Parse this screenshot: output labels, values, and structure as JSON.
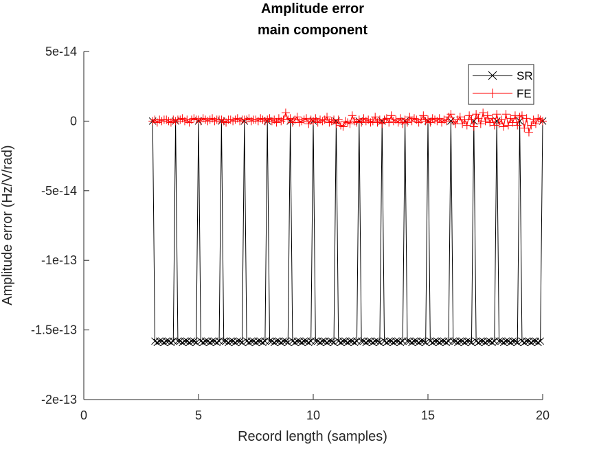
{
  "chart_data": {
    "type": "line",
    "title": "Amplitude error",
    "subtitle": "main component",
    "xlabel": "Record length (samples)",
    "ylabel": "Amplitude error (Hz/V/rad)",
    "xlim": [
      0,
      20
    ],
    "ylim": [
      -2e-13,
      5e-14
    ],
    "x_ticks": [
      0,
      5,
      10,
      15,
      20
    ],
    "x_tick_labels": [
      "0",
      "5",
      "10",
      "15",
      "20"
    ],
    "y_ticks": [
      5e-14,
      0,
      -5e-14,
      -1e-13,
      -1.5e-13,
      -2e-13
    ],
    "y_tick_labels": [
      "5e-14",
      "0",
      "-5e-14",
      "-1e-13",
      "-1.5e-13",
      "-2e-13"
    ],
    "grid": false,
    "legend": {
      "placement": "top-right",
      "entries": [
        "SR",
        "FE"
      ]
    },
    "series": [
      {
        "name": "SR",
        "color": "#000000",
        "marker": "x",
        "pattern": "At each integer record length 3..20 the error is 0; between integers it sits near -1.58e-13",
        "x": [
          3,
          3.1,
          3.2,
          3.3,
          3.4,
          3.5,
          3.6,
          3.7,
          3.8,
          3.9,
          4,
          4.1,
          4.2,
          4.3,
          4.4,
          4.5,
          4.6,
          4.7,
          4.8,
          4.9,
          5,
          5.1,
          5.2,
          5.3,
          5.4,
          5.5,
          5.6,
          5.7,
          5.8,
          5.9,
          6,
          6.1,
          6.2,
          6.3,
          6.4,
          6.5,
          6.6,
          6.7,
          6.8,
          6.9,
          7,
          7.1,
          7.2,
          7.3,
          7.4,
          7.5,
          7.6,
          7.7,
          7.8,
          7.9,
          8,
          8.1,
          8.2,
          8.3,
          8.4,
          8.5,
          8.6,
          8.7,
          8.8,
          8.9,
          9,
          9.1,
          9.2,
          9.3,
          9.4,
          9.5,
          9.6,
          9.7,
          9.8,
          9.9,
          10,
          10.1,
          10.2,
          10.3,
          10.4,
          10.5,
          10.6,
          10.7,
          10.8,
          10.9,
          11,
          11.1,
          11.2,
          11.3,
          11.4,
          11.5,
          11.6,
          11.7,
          11.8,
          11.9,
          12,
          12.1,
          12.2,
          12.3,
          12.4,
          12.5,
          12.6,
          12.7,
          12.8,
          12.9,
          13,
          13.1,
          13.2,
          13.3,
          13.4,
          13.5,
          13.6,
          13.7,
          13.8,
          13.9,
          14,
          14.1,
          14.2,
          14.3,
          14.4,
          14.5,
          14.6,
          14.7,
          14.8,
          14.9,
          15,
          15.1,
          15.2,
          15.3,
          15.4,
          15.5,
          15.6,
          15.7,
          15.8,
          15.9,
          16,
          16.1,
          16.2,
          16.3,
          16.4,
          16.5,
          16.6,
          16.7,
          16.8,
          16.9,
          17,
          17.1,
          17.2,
          17.3,
          17.4,
          17.5,
          17.6,
          17.7,
          17.8,
          17.9,
          18,
          18.1,
          18.2,
          18.3,
          18.4,
          18.5,
          18.6,
          18.7,
          18.8,
          18.9,
          19,
          19.1,
          19.2,
          19.3,
          19.4,
          19.5,
          19.6,
          19.7,
          19.8,
          19.9,
          20
        ],
        "y": [
          0,
          -1.58e-13,
          -1.59e-13,
          -1.58e-13,
          -1.58e-13,
          -1.59e-13,
          -1.58e-13,
          -1.58e-13,
          -1.59e-13,
          -1.58e-13,
          0,
          -1.58e-13,
          -1.58e-13,
          -1.59e-13,
          -1.58e-13,
          -1.58e-13,
          -1.59e-13,
          -1.58e-13,
          -1.58e-13,
          -1.59e-13,
          0,
          -1.58e-13,
          -1.59e-13,
          -1.58e-13,
          -1.58e-13,
          -1.59e-13,
          -1.58e-13,
          -1.58e-13,
          -1.59e-13,
          -1.58e-13,
          0,
          -1.58e-13,
          -1.58e-13,
          -1.59e-13,
          -1.58e-13,
          -1.58e-13,
          -1.59e-13,
          -1.58e-13,
          -1.58e-13,
          -1.59e-13,
          0,
          -1.58e-13,
          -1.59e-13,
          -1.58e-13,
          -1.58e-13,
          -1.59e-13,
          -1.58e-13,
          -1.58e-13,
          -1.59e-13,
          -1.58e-13,
          0,
          -1.58e-13,
          -1.58e-13,
          -1.59e-13,
          -1.58e-13,
          -1.58e-13,
          -1.59e-13,
          -1.58e-13,
          -1.58e-13,
          -1.59e-13,
          0,
          -1.58e-13,
          -1.59e-13,
          -1.58e-13,
          -1.58e-13,
          -1.59e-13,
          -1.58e-13,
          -1.58e-13,
          -1.59e-13,
          -1.58e-13,
          0,
          -1.58e-13,
          -1.58e-13,
          -1.59e-13,
          -1.58e-13,
          -1.58e-13,
          -1.59e-13,
          -1.58e-13,
          -1.58e-13,
          -1.59e-13,
          0,
          -1.58e-13,
          -1.59e-13,
          -1.58e-13,
          -1.58e-13,
          -1.59e-13,
          -1.58e-13,
          -1.58e-13,
          -1.59e-13,
          -1.58e-13,
          0,
          -1.58e-13,
          -1.58e-13,
          -1.59e-13,
          -1.58e-13,
          -1.58e-13,
          -1.59e-13,
          -1.58e-13,
          -1.58e-13,
          -1.59e-13,
          0,
          -1.58e-13,
          -1.59e-13,
          -1.58e-13,
          -1.58e-13,
          -1.59e-13,
          -1.58e-13,
          -1.58e-13,
          -1.59e-13,
          -1.58e-13,
          0,
          -1.58e-13,
          -1.58e-13,
          -1.59e-13,
          -1.58e-13,
          -1.58e-13,
          -1.59e-13,
          -1.58e-13,
          -1.58e-13,
          -1.59e-13,
          0,
          -1.58e-13,
          -1.59e-13,
          -1.58e-13,
          -1.58e-13,
          -1.59e-13,
          -1.58e-13,
          -1.58e-13,
          -1.59e-13,
          -1.58e-13,
          0,
          -1.58e-13,
          -1.58e-13,
          -1.59e-13,
          -1.58e-13,
          -1.58e-13,
          -1.59e-13,
          -1.58e-13,
          -1.58e-13,
          -1.59e-13,
          0,
          -1.58e-13,
          -1.59e-13,
          -1.58e-13,
          -1.58e-13,
          -1.59e-13,
          -1.58e-13,
          -1.58e-13,
          -1.59e-13,
          -1.58e-13,
          0,
          -1.58e-13,
          -1.58e-13,
          -1.59e-13,
          -1.58e-13,
          -1.58e-13,
          -1.59e-13,
          -1.58e-13,
          -1.58e-13,
          -1.59e-13,
          0,
          -1.58e-13,
          -1.59e-13,
          -1.58e-13,
          -1.58e-13,
          -1.59e-13,
          -1.58e-13,
          -1.58e-13,
          -1.59e-13,
          -1.58e-13,
          0
        ]
      },
      {
        "name": "FE",
        "color": "#ff0000",
        "marker": "+",
        "x": [
          3,
          3.1,
          3.2,
          3.3,
          3.4,
          3.5,
          3.6,
          3.7,
          3.8,
          3.9,
          4,
          4.1,
          4.2,
          4.3,
          4.4,
          4.5,
          4.6,
          4.7,
          4.8,
          4.9,
          5,
          5.1,
          5.2,
          5.3,
          5.4,
          5.5,
          5.6,
          5.7,
          5.8,
          5.9,
          6,
          6.1,
          6.2,
          6.3,
          6.4,
          6.5,
          6.6,
          6.7,
          6.8,
          6.9,
          7,
          7.1,
          7.2,
          7.3,
          7.4,
          7.5,
          7.6,
          7.7,
          7.8,
          7.9,
          8,
          8.1,
          8.2,
          8.3,
          8.4,
          8.5,
          8.6,
          8.7,
          8.8,
          8.9,
          9,
          9.1,
          9.2,
          9.3,
          9.4,
          9.5,
          9.6,
          9.7,
          9.8,
          9.9,
          10,
          10.1,
          10.2,
          10.3,
          10.4,
          10.5,
          10.6,
          10.7,
          10.8,
          10.9,
          11,
          11.1,
          11.2,
          11.3,
          11.4,
          11.5,
          11.6,
          11.7,
          11.8,
          11.9,
          12,
          12.1,
          12.2,
          12.3,
          12.4,
          12.5,
          12.6,
          12.7,
          12.8,
          12.9,
          13,
          13.1,
          13.2,
          13.3,
          13.4,
          13.5,
          13.6,
          13.7,
          13.8,
          13.9,
          14,
          14.1,
          14.2,
          14.3,
          14.4,
          14.5,
          14.6,
          14.7,
          14.8,
          14.9,
          15,
          15.1,
          15.2,
          15.3,
          15.4,
          15.5,
          15.6,
          15.7,
          15.8,
          15.9,
          16,
          16.1,
          16.2,
          16.3,
          16.4,
          16.5,
          16.6,
          16.7,
          16.8,
          16.9,
          17,
          17.1,
          17.2,
          17.3,
          17.4,
          17.5,
          17.6,
          17.7,
          17.8,
          17.9,
          18,
          18.1,
          18.2,
          18.3,
          18.4,
          18.5,
          18.6,
          18.7,
          18.8,
          18.9,
          19,
          19.1,
          19.2,
          19.3,
          19.4,
          19.5,
          19.6,
          19.7,
          19.8,
          19.9,
          20
        ],
        "y": [
          0,
          1e-15,
          -1e-15,
          1e-15,
          0,
          1e-15,
          1e-15,
          0,
          -1e-15,
          1e-15,
          0,
          1e-15,
          1e-15,
          2e-15,
          0,
          1e-15,
          -1e-15,
          1e-15,
          2e-15,
          1e-15,
          1e-15,
          0,
          2e-15,
          1e-15,
          0,
          1e-15,
          2e-15,
          0,
          1e-15,
          1e-15,
          1e-15,
          0,
          -1e-15,
          1e-15,
          1e-15,
          0,
          1e-15,
          2e-15,
          0,
          1e-15,
          1e-15,
          1e-15,
          2e-15,
          0,
          1e-15,
          1e-15,
          0,
          2e-15,
          1e-15,
          0,
          1e-15,
          2e-15,
          0,
          1e-15,
          -1e-15,
          2e-15,
          0,
          1e-15,
          6e-15,
          1e-15,
          2e-15,
          -1e-15,
          1e-15,
          3e-15,
          -1e-15,
          0,
          1e-15,
          2e-15,
          -2e-15,
          1e-15,
          0,
          2e-15,
          -1e-15,
          1e-15,
          0,
          1e-15,
          3e-15,
          -1e-15,
          0,
          1e-15,
          -2e-15,
          1e-15,
          -3e-15,
          -4e-15,
          0,
          -1e-15,
          -2e-15,
          4e-15,
          0,
          -1e-15,
          1e-15,
          -1e-15,
          2e-15,
          0,
          1e-15,
          -1e-15,
          0,
          3e-15,
          -1e-15,
          1e-15,
          -2e-15,
          1e-15,
          2e-15,
          -1e-15,
          4e-15,
          0,
          1e-15,
          -1e-15,
          2e-15,
          -2e-15,
          1e-15,
          -1e-15,
          3e-15,
          0,
          2e-15,
          1e-15,
          -1e-15,
          1e-15,
          4e-15,
          0,
          1e-15,
          -1e-15,
          2e-15,
          1e-15,
          0,
          2e-15,
          -1e-15,
          1e-15,
          0,
          3e-15,
          5e-15,
          0,
          -2e-15,
          1e-15,
          3e-15,
          -2e-15,
          1e-15,
          -3e-15,
          4e-15,
          1e-15,
          -4e-15,
          5e-15,
          2e-15,
          -2e-15,
          6e-15,
          0,
          4e-15,
          -1e-15,
          2e-15,
          -3e-15,
          5e-15,
          -2e-15,
          1e-15,
          -4e-15,
          5e-15,
          -3e-15,
          2e-15,
          -1e-15,
          4e-15,
          -3e-15,
          3e-15,
          4e-15,
          -5e-15,
          2e-15,
          -8e-15,
          -3e-15,
          1e-15,
          -2e-15,
          2e-15,
          1e-15,
          0
        ]
      }
    ]
  }
}
